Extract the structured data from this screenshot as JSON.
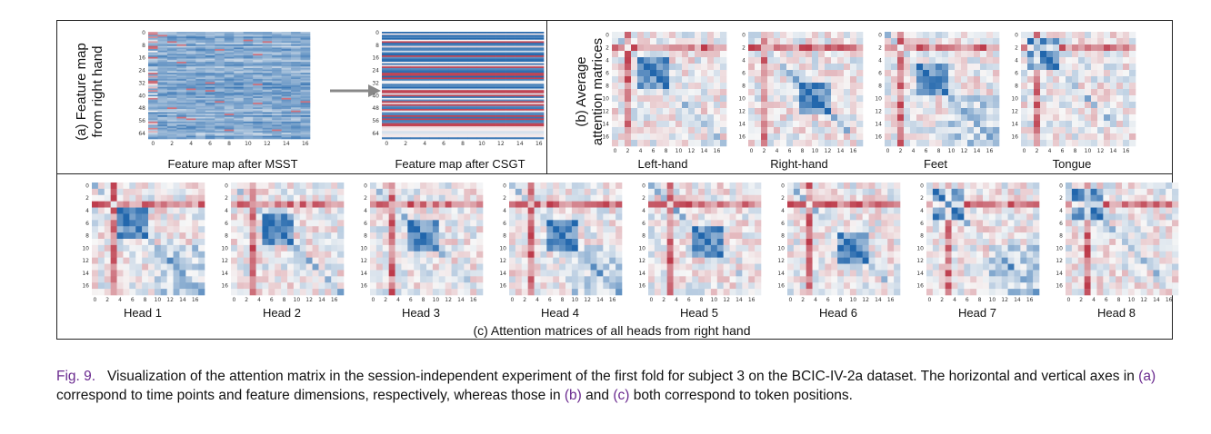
{
  "panel_a": {
    "rotated_label_line1": "(a) Feature map",
    "rotated_label_line2": "from right hand",
    "map1_title": "Feature map after MSST",
    "map2_title": "Feature map after CSGT",
    "y_ticks": [
      "0",
      "8",
      "16",
      "24",
      "32",
      "40",
      "48",
      "56",
      "64"
    ],
    "x_ticks": [
      "0",
      "2",
      "4",
      "6",
      "8",
      "10",
      "12",
      "14",
      "16"
    ]
  },
  "panel_b": {
    "rotated_label_line1": "(b) Average",
    "rotated_label_line2": "attention matrices",
    "titles": [
      "Left-hand",
      "Right-hand",
      "Feet",
      "Tongue"
    ]
  },
  "panel_c": {
    "titles": [
      "Head 1",
      "Head 2",
      "Head 3",
      "Head 4",
      "Head 5",
      "Head 6",
      "Head 7",
      "Head 8"
    ],
    "caption": "(c) Attention matrices of all heads from right hand"
  },
  "matrix_ticks": [
    "0",
    "2",
    "4",
    "6",
    "8",
    "10",
    "12",
    "14",
    "16"
  ],
  "colors": {
    "red": "#b2182b",
    "blue": "#2166ac",
    "white": "#f7f7f7"
  },
  "caption": {
    "lead": "Fig. 9.",
    "text1": "Visualization of the attention matrix in the session-independent experiment of the first fold for subject 3 on the BCIC-IV-2a dataset. The horizontal and vertical axes in ",
    "ref_a": "(a)",
    "text2": " correspond to time points and feature dimensions, respectively, whereas those in ",
    "ref_b": "(b)",
    "text3": " and ",
    "ref_c": "(c)",
    "text4": " both correspond to token positions."
  }
}
